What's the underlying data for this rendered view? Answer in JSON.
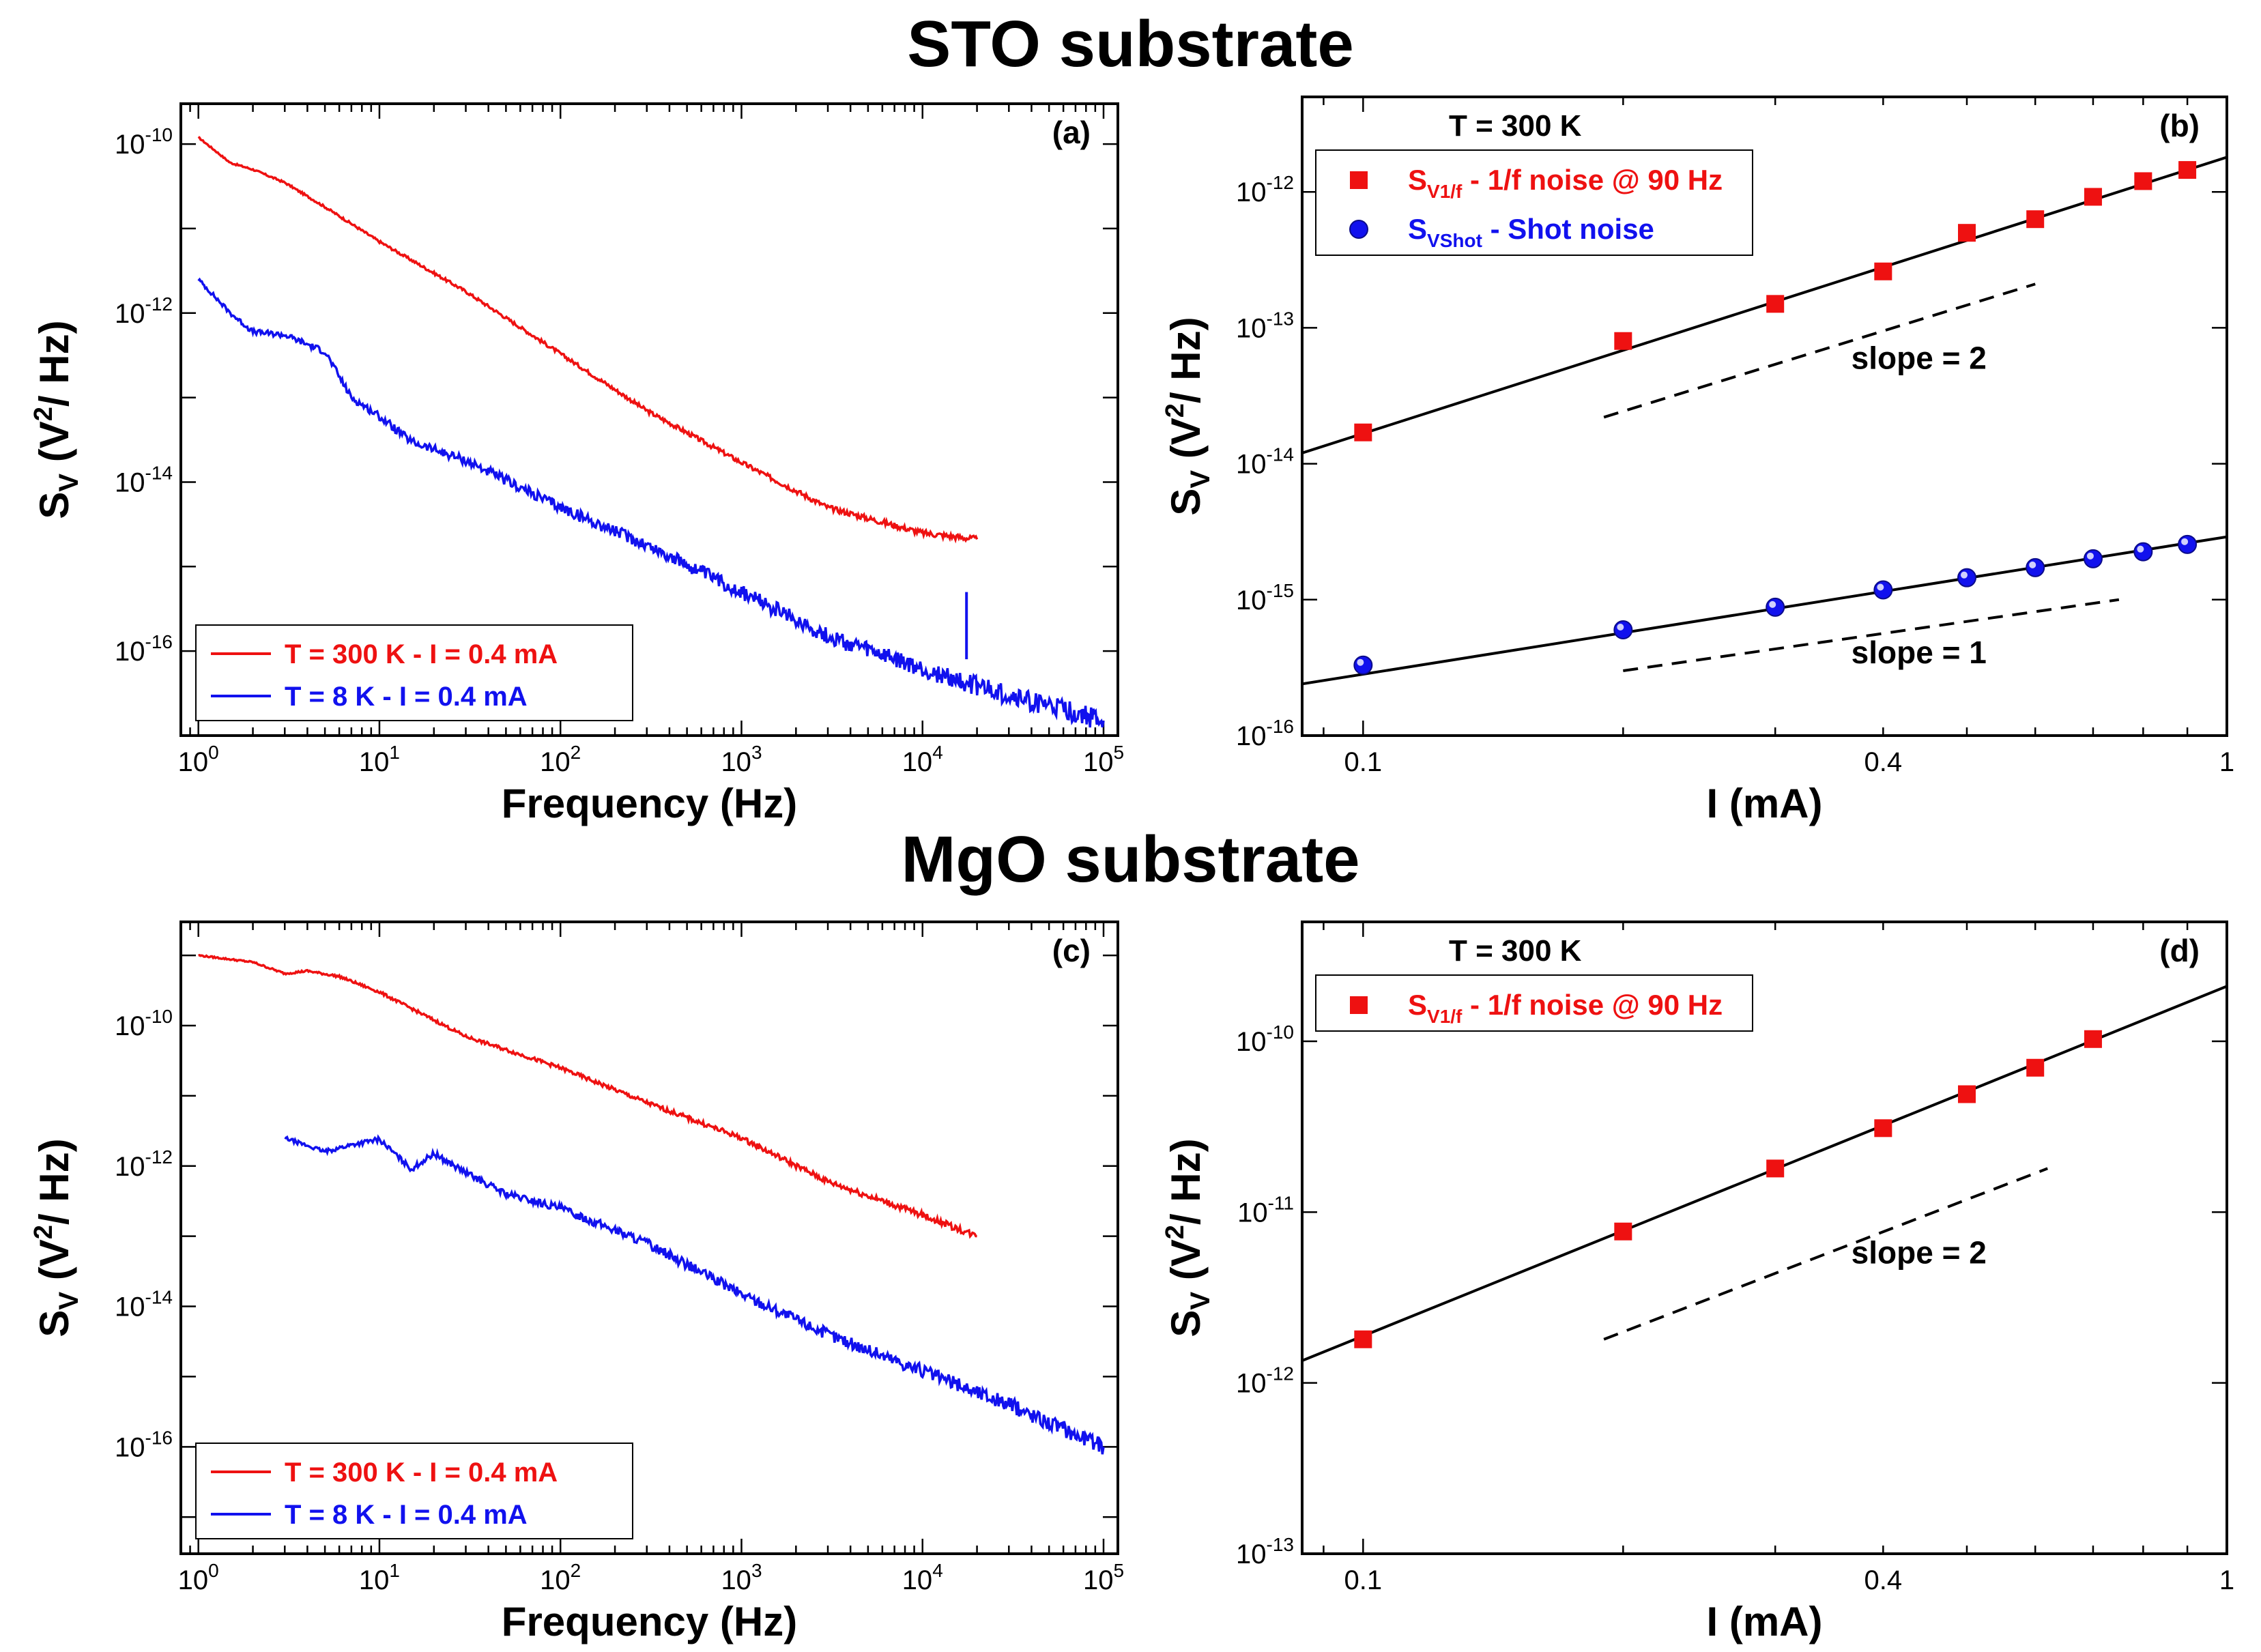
{
  "titles": {
    "top": "STO substrate",
    "bottom": "MgO substrate"
  },
  "colors": {
    "red": "#ee1111",
    "blue": "#1111ee",
    "black": "#000000"
  },
  "chart_data": [
    {
      "id": "a",
      "type": "line",
      "panel_label": "(a)",
      "xlabel": "Frequency (Hz)",
      "ylabel": "S_V (V^2/ Hz)",
      "xscale": "log",
      "yscale": "log",
      "xlim": [
        0.8,
        120000
      ],
      "ylim": [
        1e-17,
        3e-10
      ],
      "xticks": [
        {
          "v": 1,
          "m": "10",
          "e": "0"
        },
        {
          "v": 10,
          "m": "10",
          "e": "1"
        },
        {
          "v": 100,
          "m": "10",
          "e": "2"
        },
        {
          "v": 1000,
          "m": "10",
          "e": "3"
        },
        {
          "v": 10000,
          "m": "10",
          "e": "4"
        },
        {
          "v": 100000,
          "m": "10",
          "e": "5"
        }
      ],
      "yticks": [
        {
          "v": 1e-10,
          "m": "10",
          "e": "-10"
        },
        {
          "v": 1e-12,
          "m": "10",
          "e": "-12"
        },
        {
          "v": 1e-14,
          "m": "10",
          "e": "-14"
        },
        {
          "v": 1e-16,
          "m": "10",
          "e": "-16"
        }
      ],
      "legend_position": "bottom-left",
      "series": [
        {
          "name": "T = 300 K  - I = 0.4 mA",
          "color": "#ee1111",
          "noise": 0.04,
          "x": [
            1,
            1.5,
            2,
            3,
            5,
            10,
            30,
            100,
            300,
            1000,
            3000,
            10000,
            20000
          ],
          "y": [
            1.2e-10,
            6e-11,
            5e-11,
            3.5e-11,
            1.8e-11,
            7e-12,
            1.8e-12,
            3.3e-13,
            7e-14,
            1.7e-14,
            5e-15,
            2.5e-15,
            2.1e-15
          ]
        },
        {
          "name": "T = 8 K     - I = 0.4 mA",
          "color": "#1111ee",
          "noise": 0.12,
          "x": [
            1,
            1.5,
            2,
            3,
            5,
            7,
            10,
            15,
            30,
            100,
            300,
            1000,
            3000,
            10000,
            30000,
            100000
          ],
          "y": [
            2.5e-12,
            1e-12,
            6e-13,
            5.5e-13,
            3.5e-13,
            1e-13,
            6e-14,
            3e-14,
            1.8e-14,
            5e-15,
            1.8e-15,
            5e-16,
            1.5e-16,
            6e-17,
            3e-17,
            1.5e-17
          ]
        }
      ]
    },
    {
      "id": "b",
      "type": "scatter",
      "panel_label": "(b)",
      "xlabel": "I (mA)",
      "ylabel": "S_V (V^2/ Hz)",
      "xscale": "log",
      "yscale": "log",
      "xlim": [
        0.085,
        1.0
      ],
      "ylim": [
        1e-16,
        5e-12
      ],
      "xticks": [
        {
          "v": 0.1,
          "m": "0.1",
          "e": ""
        },
        {
          "v": 0.4,
          "m": "0.4",
          "e": ""
        },
        {
          "v": 1,
          "m": "1",
          "e": ""
        }
      ],
      "yticks": [
        {
          "v": 1e-12,
          "m": "10",
          "e": "-12"
        },
        {
          "v": 1e-13,
          "m": "10",
          "e": "-13"
        },
        {
          "v": 1e-14,
          "m": "10",
          "e": "-14"
        },
        {
          "v": 1e-15,
          "m": "10",
          "e": "-15"
        },
        {
          "v": 1e-16,
          "m": "10",
          "e": "-16"
        }
      ],
      "annotation_temp": "T = 300 K",
      "legend_position": "top-left",
      "series": [
        {
          "name_main": "S",
          "name_sub": "V1/f",
          "name_rest": " - 1/f noise @ 90 Hz",
          "color": "#ee1111",
          "marker": "square",
          "x": [
            0.1,
            0.2,
            0.3,
            0.4,
            0.5,
            0.6,
            0.7,
            0.8,
            0.9
          ],
          "y": [
            1.7e-14,
            8e-14,
            1.5e-13,
            2.6e-13,
            5e-13,
            6.3e-13,
            9.2e-13,
            1.2e-12,
            1.45e-12
          ],
          "fit_x": [
            0.085,
            1.0
          ],
          "fit_y": [
            1.2e-14,
            1.8e-12
          ]
        },
        {
          "name_main": "S",
          "name_sub": "VShot",
          "name_rest": " - Shot noise",
          "color": "#1111ee",
          "marker": "circle",
          "x": [
            0.1,
            0.2,
            0.3,
            0.4,
            0.5,
            0.6,
            0.7,
            0.8,
            0.9
          ],
          "y": [
            3.3e-16,
            6e-16,
            8.8e-16,
            1.18e-15,
            1.45e-15,
            1.72e-15,
            2e-15,
            2.25e-15,
            2.55e-15
          ],
          "fit_x": [
            0.085,
            1.0
          ],
          "fit_y": [
            2.4e-16,
            2.9e-15
          ]
        }
      ],
      "slopes": [
        {
          "label": "slope = 2",
          "x": [
            0.19,
            0.6
          ],
          "y": [
            2.2e-14,
            2.1e-13
          ],
          "label_at": [
            0.44,
            5e-14
          ]
        },
        {
          "label": "slope = 1",
          "x": [
            0.2,
            0.75
          ],
          "y": [
            3e-16,
            1e-15
          ],
          "label_at": [
            0.44,
            3.4e-16
          ]
        }
      ]
    },
    {
      "id": "c",
      "type": "line",
      "panel_label": "(c)",
      "xlabel": "Frequency (Hz)",
      "ylabel": "S_V (V^2/ Hz)",
      "xscale": "log",
      "yscale": "log",
      "xlim": [
        0.8,
        120000
      ],
      "ylim": [
        3e-18,
        3e-09
      ],
      "xticks": [
        {
          "v": 1,
          "m": "10",
          "e": "0"
        },
        {
          "v": 10,
          "m": "10",
          "e": "1"
        },
        {
          "v": 100,
          "m": "10",
          "e": "2"
        },
        {
          "v": 1000,
          "m": "10",
          "e": "3"
        },
        {
          "v": 10000,
          "m": "10",
          "e": "4"
        },
        {
          "v": 100000,
          "m": "10",
          "e": "5"
        }
      ],
      "yticks": [
        {
          "v": 1e-10,
          "m": "10",
          "e": "-10"
        },
        {
          "v": 1e-12,
          "m": "10",
          "e": "-12"
        },
        {
          "v": 1e-14,
          "m": "10",
          "e": "-14"
        },
        {
          "v": 1e-16,
          "m": "10",
          "e": "-16"
        }
      ],
      "legend_position": "bottom-left",
      "series": [
        {
          "name": "T = 300 K  - I = 0.4 mA",
          "color": "#ee1111",
          "noise": 0.05,
          "x": [
            1,
            2,
            3,
            4,
            6,
            10,
            30,
            100,
            300,
            1000,
            3000,
            10000,
            20000
          ],
          "y": [
            1e-09,
            8e-10,
            5.5e-10,
            6e-10,
            5e-10,
            3e-10,
            7e-11,
            2.5e-11,
            8e-12,
            2.5e-12,
            6e-13,
            2e-13,
            1e-13
          ]
        },
        {
          "name": "T = 8 K     - I = 0.4 mA",
          "color": "#1111ee",
          "noise": 0.12,
          "x": [
            3,
            5,
            7,
            10,
            15,
            20,
            30,
            50,
            100,
            300,
            1000,
            3000,
            10000,
            30000,
            100000
          ],
          "y": [
            2.5e-12,
            1.6e-12,
            2e-12,
            2.4e-12,
            9e-13,
            1.5e-12,
            8e-13,
            4e-13,
            2.5e-13,
            8e-14,
            1.5e-14,
            4e-15,
            1.2e-15,
            4e-16,
            1e-16
          ]
        }
      ]
    },
    {
      "id": "d",
      "type": "scatter",
      "panel_label": "(d)",
      "xlabel": "I (mA)",
      "ylabel": "S_V (V^2/ Hz)",
      "xscale": "log",
      "yscale": "log",
      "xlim": [
        0.085,
        1.0
      ],
      "ylim": [
        1e-13,
        5e-10
      ],
      "xticks": [
        {
          "v": 0.1,
          "m": "0.1",
          "e": ""
        },
        {
          "v": 0.4,
          "m": "0.4",
          "e": ""
        },
        {
          "v": 1,
          "m": "1",
          "e": ""
        }
      ],
      "yticks": [
        {
          "v": 1e-10,
          "m": "10",
          "e": "-10"
        },
        {
          "v": 1e-11,
          "m": "10",
          "e": "-11"
        },
        {
          "v": 1e-12,
          "m": "10",
          "e": "-12"
        },
        {
          "v": 1e-13,
          "m": "10",
          "e": "-13"
        }
      ],
      "annotation_temp": "T = 300 K",
      "legend_position": "top-left",
      "series": [
        {
          "name_main": "S",
          "name_sub": "V1/f",
          "name_rest": " - 1/f noise @ 90 Hz",
          "color": "#ee1111",
          "marker": "square",
          "x": [
            0.1,
            0.2,
            0.3,
            0.4,
            0.5,
            0.6,
            0.7
          ],
          "y": [
            1.8e-12,
            7.7e-12,
            1.8e-11,
            3.1e-11,
            4.9e-11,
            7e-11,
            1.03e-10
          ],
          "fit_x": [
            0.085,
            1.0
          ],
          "fit_y": [
            1.35e-12,
            2.1e-10
          ]
        }
      ],
      "slopes": [
        {
          "label": "slope = 2",
          "x": [
            0.19,
            0.62
          ],
          "y": [
            1.8e-12,
            1.8e-11
          ],
          "label_at": [
            0.44,
            5e-12
          ]
        }
      ]
    }
  ]
}
